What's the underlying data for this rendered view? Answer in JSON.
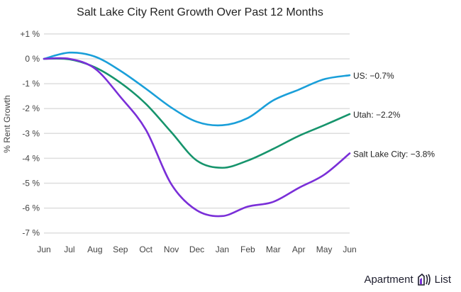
{
  "chart_data": {
    "type": "line",
    "title": "Salt Lake City Rent Growth Over Past 12 Months",
    "xlabel": "",
    "ylabel": "% Rent Growth",
    "categories": [
      "Jun",
      "Jul",
      "Aug",
      "Sep",
      "Oct",
      "Nov",
      "Dec",
      "Jan",
      "Feb",
      "Mar",
      "Apr",
      "May",
      "Jun"
    ],
    "yticks": [
      {
        "value": 1,
        "label": "+1 %"
      },
      {
        "value": 0,
        "label": "0 %"
      },
      {
        "value": -1,
        "label": "-1 %"
      },
      {
        "value": -2,
        "label": "-2 %"
      },
      {
        "value": -3,
        "label": "-3 %"
      },
      {
        "value": -4,
        "label": "-4 %"
      },
      {
        "value": -5,
        "label": "-5 %"
      },
      {
        "value": -6,
        "label": "-6 %"
      },
      {
        "value": -7,
        "label": "-7 %"
      }
    ],
    "ylim": [
      -7,
      1
    ],
    "grid": true,
    "series": [
      {
        "name": "US",
        "label": "US: −0.7%",
        "color": "#1a9fd9",
        "values": [
          0,
          0.25,
          0.09,
          -0.48,
          -1.2,
          -1.96,
          -2.53,
          -2.67,
          -2.38,
          -1.67,
          -1.24,
          -0.82,
          -0.66
        ]
      },
      {
        "name": "Utah",
        "label": "Utah: −2.2%",
        "color": "#16946c",
        "values": [
          0,
          -0.02,
          -0.34,
          -0.96,
          -1.81,
          -2.95,
          -4.09,
          -4.38,
          -4.09,
          -3.62,
          -3.1,
          -2.67,
          -2.22
        ]
      },
      {
        "name": "Salt Lake City",
        "label": "Salt Lake City: −3.8%",
        "color": "#7a2fd8",
        "values": [
          0,
          0,
          -0.39,
          -1.53,
          -2.85,
          -5.04,
          -6.09,
          -6.32,
          -5.94,
          -5.75,
          -5.19,
          -4.66,
          -3.8
        ]
      }
    ]
  },
  "brand": {
    "name": "Apartment List",
    "icon": "apartment-list-logo-icon"
  }
}
